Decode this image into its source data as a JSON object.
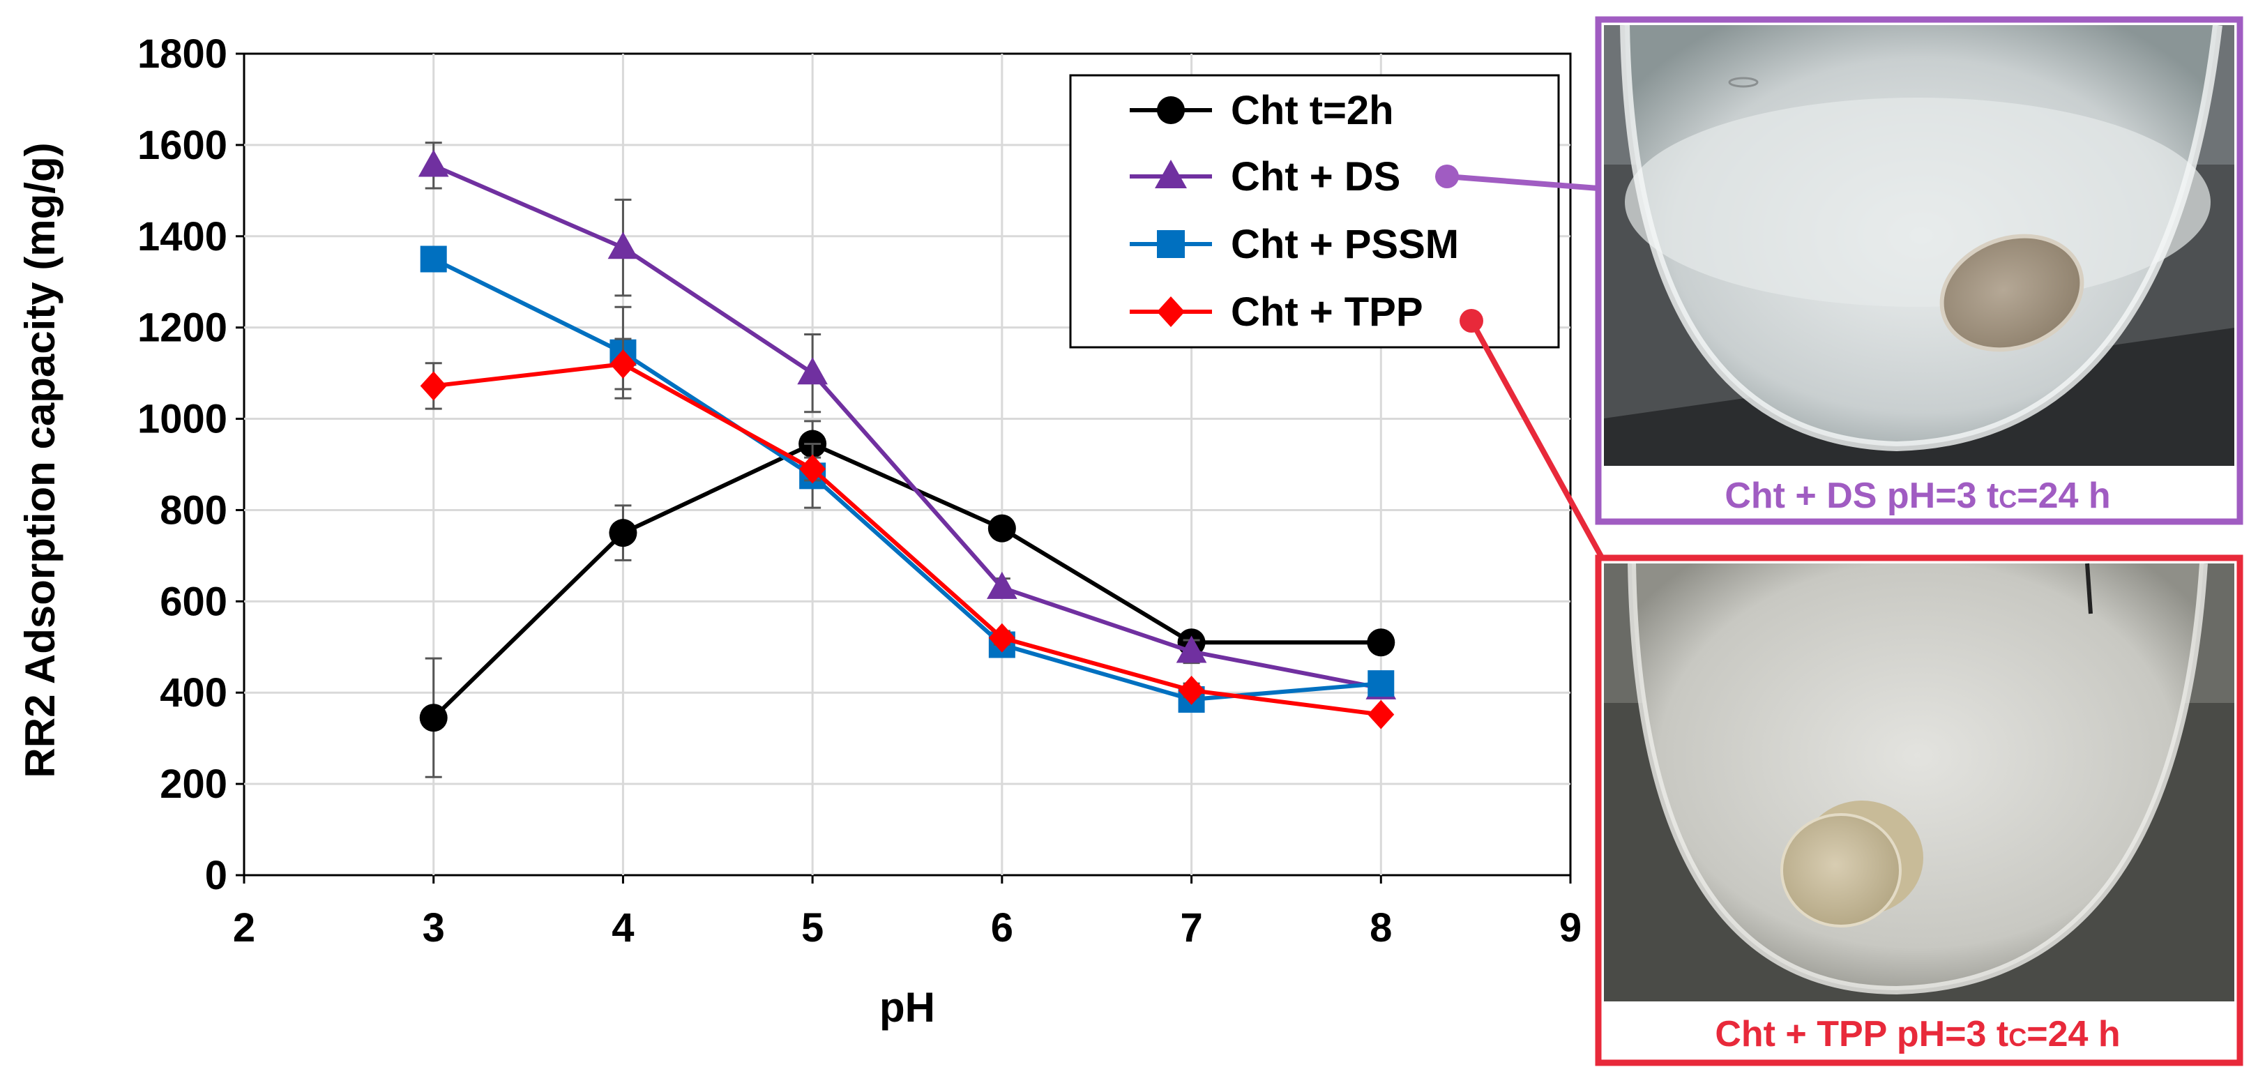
{
  "chart_data": {
    "type": "line",
    "xlabel": "pH",
    "ylabel": "RR2 Adsorption capacity (mg/g)",
    "xlim": [
      2,
      9
    ],
    "ylim": [
      0,
      1800
    ],
    "xticks": [
      "2",
      "3",
      "4",
      "5",
      "6",
      "7",
      "8",
      "9"
    ],
    "yticks": [
      "0",
      "200",
      "400",
      "600",
      "800",
      "1000",
      "1200",
      "1400",
      "1600",
      "1800"
    ],
    "grid": true,
    "legend_position": "top-right",
    "series": [
      {
        "name": "Cht t=2h",
        "color": "#000000",
        "marker": "circle",
        "points": [
          {
            "x": 3,
            "y": 345,
            "err": 130
          },
          {
            "x": 4,
            "y": 750,
            "err": 60
          },
          {
            "x": 5,
            "y": 945,
            "err": 50
          },
          {
            "x": 6,
            "y": 760,
            "err": 15
          },
          {
            "x": 7,
            "y": 510,
            "err": 20
          },
          {
            "x": 8,
            "y": 510,
            "err": 10
          }
        ]
      },
      {
        "name": "Cht + DS",
        "color": "#7030a0",
        "marker": "triangle",
        "points": [
          {
            "x": 3,
            "y": 1555,
            "err": 50
          },
          {
            "x": 4,
            "y": 1375,
            "err": 105
          },
          {
            "x": 5,
            "y": 1100,
            "err": 85
          },
          {
            "x": 6,
            "y": 630,
            "err": 20
          },
          {
            "x": 7,
            "y": 490,
            "err": 25
          },
          {
            "x": 8,
            "y": 410,
            "err": 15
          }
        ]
      },
      {
        "name": "Cht + PSSM",
        "color": "#0070c0",
        "marker": "square",
        "points": [
          {
            "x": 3,
            "y": 1350,
            "err": 25
          },
          {
            "x": 4,
            "y": 1145,
            "err": 100
          },
          {
            "x": 5,
            "y": 875,
            "err": 70
          },
          {
            "x": 6,
            "y": 505,
            "err": 20
          },
          {
            "x": 7,
            "y": 385,
            "err": 15
          },
          {
            "x": 8,
            "y": 420,
            "err": 15
          }
        ]
      },
      {
        "name": "Cht + TPP",
        "color": "#ff0000",
        "marker": "diamond",
        "points": [
          {
            "x": 3,
            "y": 1072,
            "err": 50
          },
          {
            "x": 4,
            "y": 1120,
            "err": 55
          },
          {
            "x": 5,
            "y": 890,
            "err": 25
          },
          {
            "x": 6,
            "y": 520,
            "err": 15
          },
          {
            "x": 7,
            "y": 405,
            "err": 15
          },
          {
            "x": 8,
            "y": 352,
            "err": 10
          }
        ]
      }
    ],
    "annotations": [
      {
        "text": "Cht + DS    pH=3    tC=24 h",
        "color": "#a05cc2"
      },
      {
        "text": "Cht + TPP   pH=3    tC=24 h",
        "color": "#e8293a"
      }
    ]
  },
  "photos": {
    "ds": {
      "caption_main": "Cht + DS    pH=3    t",
      "caption_sub": "C",
      "caption_end": "=24 h",
      "frame_color": "#a05cc2"
    },
    "tpp": {
      "caption_main": "Cht + TPP   pH=3    t",
      "caption_sub": "C",
      "caption_end": "=24 h",
      "frame_color": "#e8293a"
    }
  }
}
